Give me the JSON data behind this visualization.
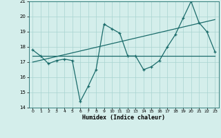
{
  "title": "",
  "xlabel": "Humidex (Indice chaleur)",
  "ylabel": "",
  "bg_color": "#d4eeeb",
  "grid_color": "#a8d4d0",
  "line_color": "#1a6b6a",
  "xlim": [
    -0.5,
    23.5
  ],
  "ylim": [
    14,
    21
  ],
  "yticks": [
    14,
    15,
    16,
    17,
    18,
    19,
    20,
    21
  ],
  "xticks": [
    0,
    1,
    2,
    3,
    4,
    5,
    6,
    7,
    8,
    9,
    10,
    11,
    12,
    13,
    14,
    15,
    16,
    17,
    18,
    19,
    20,
    21,
    22,
    23
  ],
  "series": [
    {
      "x": [
        0,
        1,
        2,
        3,
        4,
        5,
        6,
        7,
        8,
        9,
        10,
        11,
        12,
        13,
        14,
        15,
        16,
        17,
        18,
        19,
        20,
        21,
        22,
        23
      ],
      "y": [
        17.8,
        17.4,
        16.9,
        17.1,
        17.2,
        17.1,
        14.4,
        15.4,
        16.5,
        19.5,
        19.2,
        18.9,
        17.4,
        17.4,
        16.5,
        16.7,
        17.1,
        18.0,
        18.8,
        19.9,
        21.0,
        19.6,
        19.0,
        17.7
      ],
      "has_markers": true
    },
    {
      "x": [
        0,
        23
      ],
      "y": [
        17.4,
        17.4
      ],
      "has_markers": false
    },
    {
      "x": [
        0,
        23
      ],
      "y": [
        17.0,
        19.8
      ],
      "has_markers": false
    }
  ]
}
